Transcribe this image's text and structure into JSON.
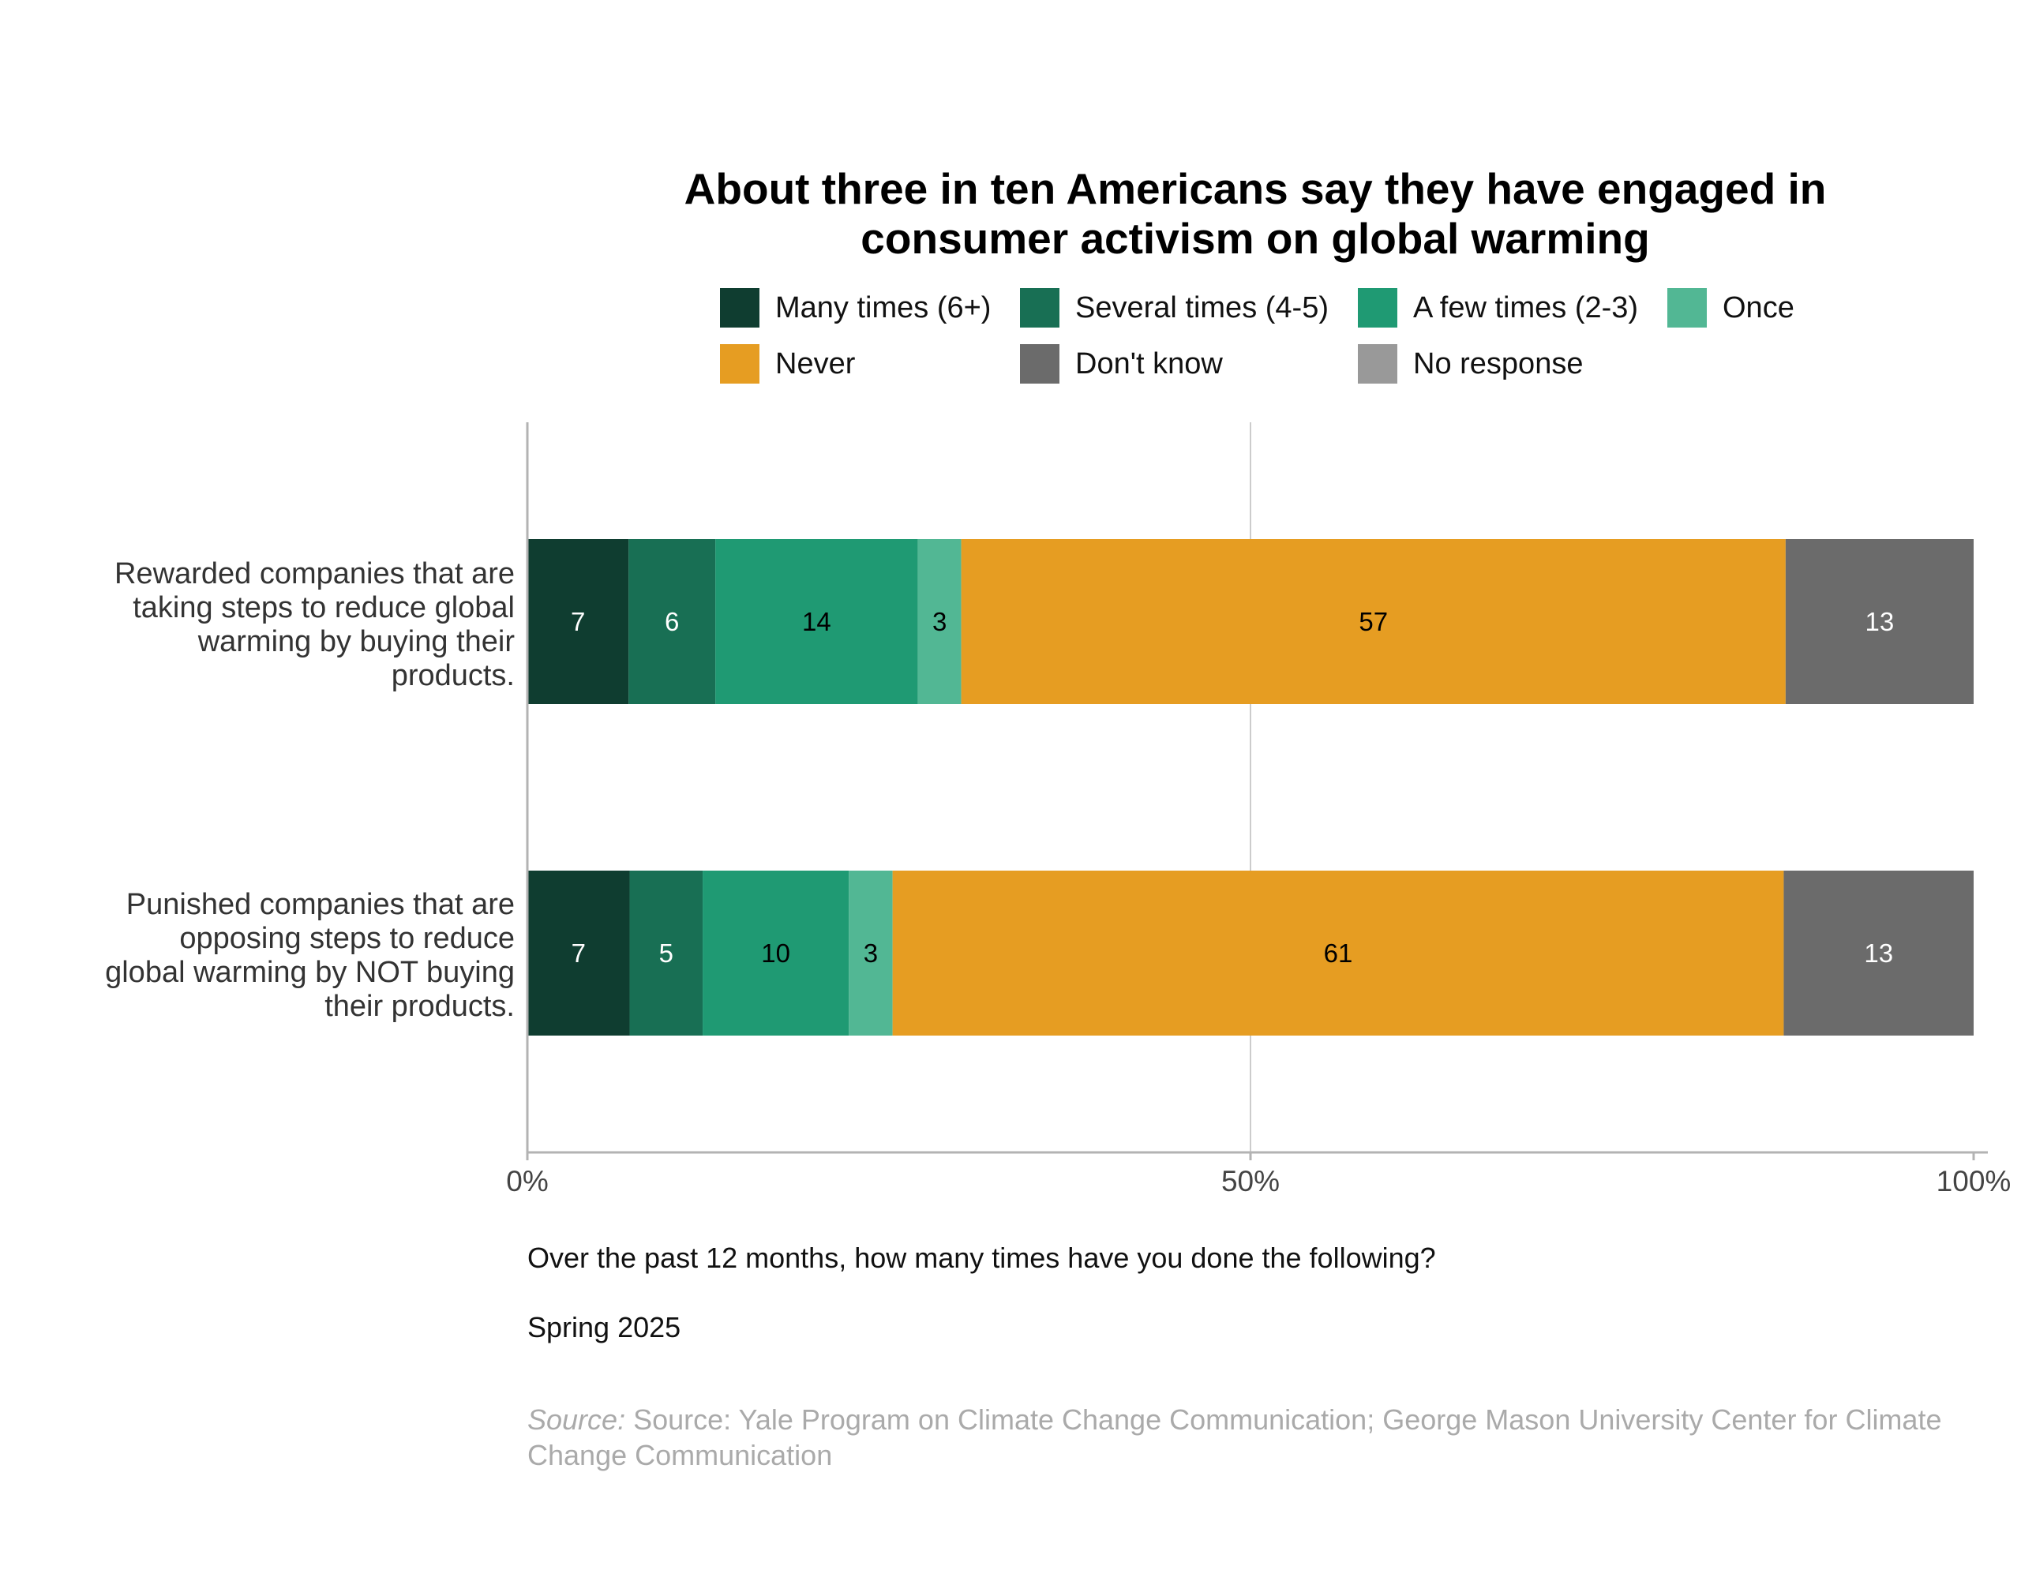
{
  "chart_data": {
    "type": "bar",
    "orientation": "horizontal",
    "stacked": true,
    "title_lines": [
      "About three in ten Americans say they have engaged in",
      "consumer activism on global warming"
    ],
    "categories": [
      {
        "lines": [
          "Rewarded companies that are",
          "taking steps to reduce global",
          "warming by buying their",
          "products."
        ]
      },
      {
        "lines": [
          "Punished companies that are",
          "opposing steps to reduce",
          "global warming by NOT buying",
          "their products."
        ]
      }
    ],
    "series": [
      {
        "name": "Many times (6+)",
        "color": "#0f3d30",
        "values": [
          7,
          7
        ],
        "label_color": "#ffffff"
      },
      {
        "name": "Several times (4-5)",
        "color": "#186f54",
        "values": [
          6,
          5
        ],
        "label_color": "#ffffff"
      },
      {
        "name": "A few times (2-3)",
        "color": "#1f9a73",
        "values": [
          14,
          10
        ],
        "label_color": "#000000"
      },
      {
        "name": "Once",
        "color": "#52b794",
        "values": [
          3,
          3
        ],
        "label_color": "#000000"
      },
      {
        "name": "Never",
        "color": "#e69d22",
        "values": [
          57,
          61
        ],
        "label_color": "#000000"
      },
      {
        "name": "Don't know",
        "color": "#6b6b6b",
        "values": [
          13,
          13
        ],
        "label_color": "#ffffff"
      },
      {
        "name": "No response",
        "color": "#999999",
        "values": [
          0,
          0
        ],
        "label_color": "#ffffff"
      }
    ],
    "xlim": [
      0,
      100
    ],
    "x_ticks": [
      "0%",
      "50%",
      "100%"
    ],
    "grid": "vertical at 50%",
    "legend_position": "top"
  },
  "footer": {
    "question": "Over the past 12 months, how many times have you done the following?",
    "wave": "Spring 2025",
    "source_prefix": "Source:",
    "source_text": " Source: Yale Program on Climate Change Communication; George Mason University Center for Climate Change Communication"
  }
}
